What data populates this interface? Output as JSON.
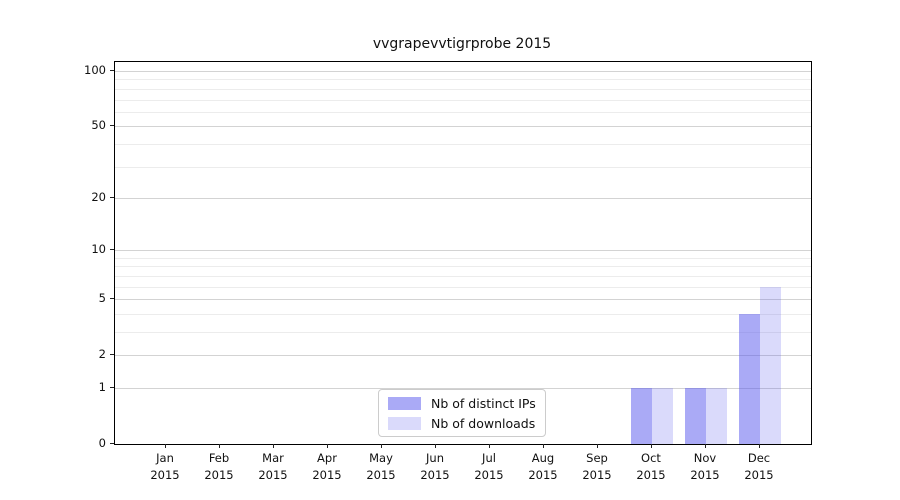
{
  "chart_data": {
    "type": "bar",
    "title": "vvgrapevvtigrprobe 2015",
    "months": [
      "Jan",
      "Feb",
      "Mar",
      "Apr",
      "May",
      "Jun",
      "Jul",
      "Aug",
      "Sep",
      "Oct",
      "Nov",
      "Dec"
    ],
    "year": "2015",
    "series": [
      {
        "name": "Nb of distinct IPs",
        "values": [
          0,
          0,
          0,
          0,
          0,
          0,
          0,
          0,
          0,
          1,
          1,
          4
        ],
        "color": "rgba(85,85,238,0.50)",
        "solid_color": "#a9a9f7"
      },
      {
        "name": "Nb of downloads",
        "values": [
          0,
          0,
          0,
          0,
          0,
          0,
          0,
          0,
          0,
          1,
          1,
          6
        ],
        "color": "rgba(85,85,238,0.22)",
        "solid_color": "#d9d9fa"
      }
    ],
    "yscale": "log1p",
    "ylim": [
      0,
      112
    ],
    "y_major_ticks": [
      0,
      1,
      2,
      5,
      10,
      20,
      50,
      100
    ],
    "y_minor_gridlines": [
      3,
      4,
      6,
      7,
      8,
      9,
      30,
      40,
      60,
      70,
      80,
      90
    ],
    "grid": "horizontal-only",
    "legend_position": "lower-center",
    "axis_color": "#000000",
    "major_grid_color": "#d3d3d3",
    "minor_grid_color": "#ececec"
  }
}
